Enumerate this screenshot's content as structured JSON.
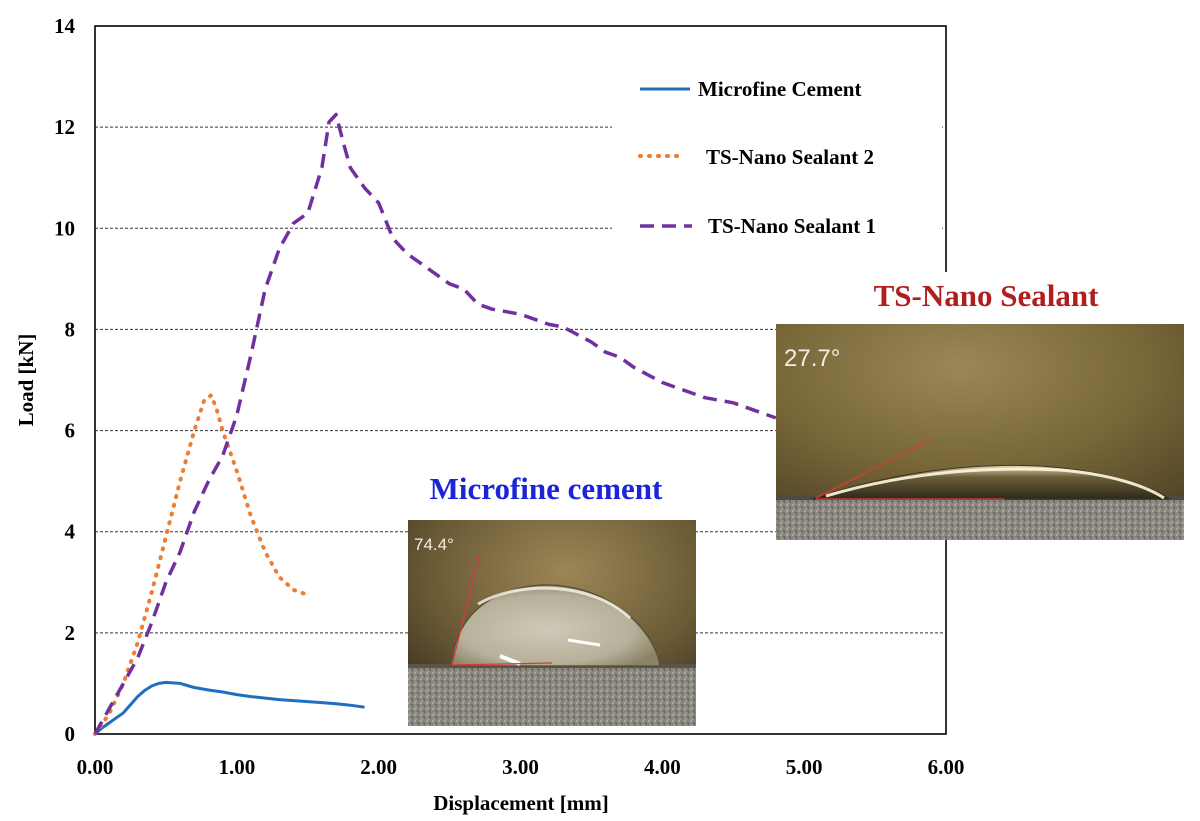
{
  "chart_data": {
    "type": "line",
    "title": "",
    "xlabel": "Displacement  [mm]",
    "ylabel": "Load [kN]",
    "xlim": [
      0,
      6
    ],
    "ylim": [
      0,
      14
    ],
    "x_ticks": [
      "0.00",
      "1.00",
      "2.00",
      "3.00",
      "4.00",
      "5.00",
      "6.00"
    ],
    "y_ticks": [
      "0",
      "2",
      "4",
      "6",
      "8",
      "10",
      "12",
      "14"
    ],
    "grid": "horizontal dashed",
    "legend_position": "top-right",
    "series": [
      {
        "name": "Microfine Cement",
        "style": "solid",
        "color": "#1f6fbf",
        "points": [
          [
            0,
            0
          ],
          [
            0.05,
            0.12
          ],
          [
            0.1,
            0.22
          ],
          [
            0.15,
            0.32
          ],
          [
            0.2,
            0.42
          ],
          [
            0.25,
            0.58
          ],
          [
            0.3,
            0.74
          ],
          [
            0.35,
            0.86
          ],
          [
            0.4,
            0.95
          ],
          [
            0.45,
            1.0
          ],
          [
            0.5,
            1.02
          ],
          [
            0.55,
            1.01
          ],
          [
            0.6,
            1.0
          ],
          [
            0.65,
            0.96
          ],
          [
            0.7,
            0.92
          ],
          [
            0.8,
            0.87
          ],
          [
            0.9,
            0.83
          ],
          [
            1.0,
            0.78
          ],
          [
            1.1,
            0.74
          ],
          [
            1.2,
            0.71
          ],
          [
            1.3,
            0.68
          ],
          [
            1.4,
            0.66
          ],
          [
            1.5,
            0.64
          ],
          [
            1.6,
            0.62
          ],
          [
            1.7,
            0.6
          ],
          [
            1.8,
            0.57
          ],
          [
            1.9,
            0.53
          ]
        ]
      },
      {
        "name": "TS-Nano Sealant 2",
        "style": "dotted",
        "color": "#ed7d31",
        "points": [
          [
            0,
            0
          ],
          [
            0.1,
            0.4
          ],
          [
            0.2,
            1.0
          ],
          [
            0.3,
            1.8
          ],
          [
            0.4,
            2.8
          ],
          [
            0.5,
            3.9
          ],
          [
            0.6,
            5.0
          ],
          [
            0.7,
            6.0
          ],
          [
            0.77,
            6.6
          ],
          [
            0.82,
            6.7
          ],
          [
            0.86,
            6.4
          ],
          [
            0.9,
            6.0
          ],
          [
            1.0,
            5.2
          ],
          [
            1.1,
            4.3
          ],
          [
            1.2,
            3.6
          ],
          [
            1.3,
            3.1
          ],
          [
            1.4,
            2.85
          ],
          [
            1.5,
            2.75
          ]
        ]
      },
      {
        "name": "TS-Nano Sealant 1",
        "style": "dashed",
        "color": "#7030a0",
        "points": [
          [
            0,
            0
          ],
          [
            0.1,
            0.5
          ],
          [
            0.2,
            1.0
          ],
          [
            0.3,
            1.5
          ],
          [
            0.4,
            2.2
          ],
          [
            0.5,
            3.0
          ],
          [
            0.6,
            3.6
          ],
          [
            0.7,
            4.4
          ],
          [
            0.8,
            5.0
          ],
          [
            0.9,
            5.5
          ],
          [
            1.0,
            6.3
          ],
          [
            1.1,
            7.5
          ],
          [
            1.2,
            8.8
          ],
          [
            1.3,
            9.6
          ],
          [
            1.4,
            10.1
          ],
          [
            1.5,
            10.3
          ],
          [
            1.6,
            11.2
          ],
          [
            1.65,
            12.1
          ],
          [
            1.7,
            12.25
          ],
          [
            1.75,
            11.7
          ],
          [
            1.8,
            11.2
          ],
          [
            1.9,
            10.8
          ],
          [
            2.0,
            10.5
          ],
          [
            2.1,
            9.8
          ],
          [
            2.2,
            9.5
          ],
          [
            2.3,
            9.3
          ],
          [
            2.4,
            9.1
          ],
          [
            2.5,
            8.9
          ],
          [
            2.6,
            8.8
          ],
          [
            2.7,
            8.5
          ],
          [
            2.8,
            8.4
          ],
          [
            2.9,
            8.35
          ],
          [
            3.0,
            8.3
          ],
          [
            3.1,
            8.2
          ],
          [
            3.2,
            8.1
          ],
          [
            3.3,
            8.05
          ],
          [
            3.4,
            7.9
          ],
          [
            3.5,
            7.75
          ],
          [
            3.6,
            7.55
          ],
          [
            3.7,
            7.45
          ],
          [
            3.8,
            7.25
          ],
          [
            3.9,
            7.1
          ],
          [
            4.0,
            6.95
          ],
          [
            4.1,
            6.85
          ],
          [
            4.2,
            6.75
          ],
          [
            4.3,
            6.65
          ],
          [
            4.4,
            6.6
          ],
          [
            4.5,
            6.55
          ],
          [
            4.6,
            6.45
          ],
          [
            4.7,
            6.35
          ],
          [
            4.8,
            6.25
          ]
        ]
      }
    ],
    "annotations": [
      {
        "text": "Microfine cement",
        "color": "#1c24d8"
      },
      {
        "text": "TS-Nano Sealant",
        "color": "#b01e1e"
      }
    ],
    "insets": [
      {
        "label": "74.4°"
      },
      {
        "label": "27.7°"
      }
    ]
  }
}
